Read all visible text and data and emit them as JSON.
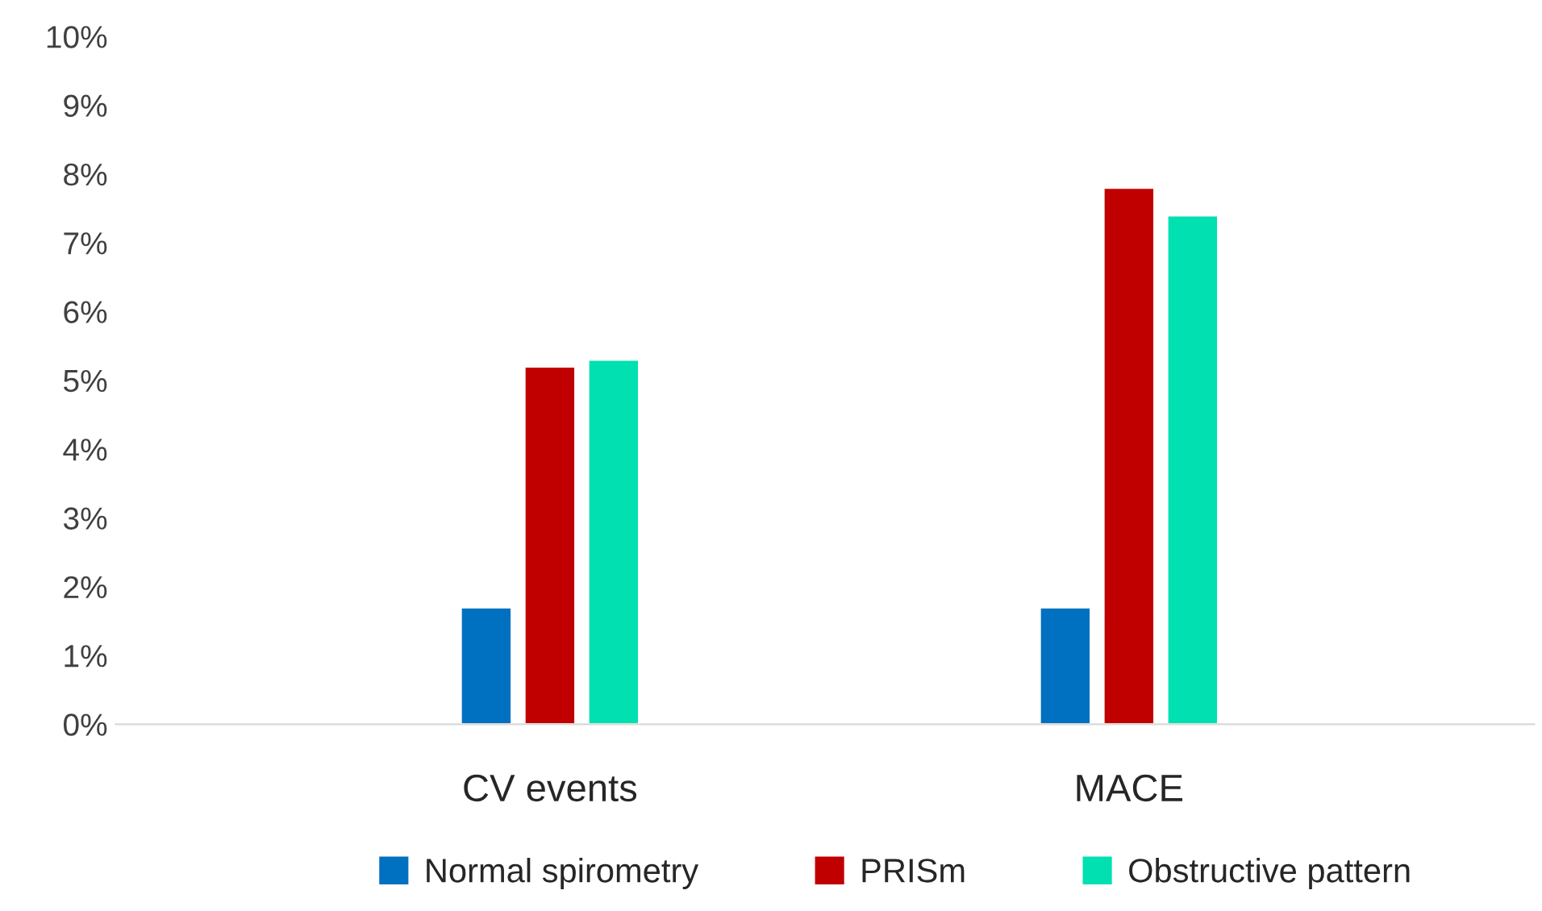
{
  "chart_data": {
    "type": "bar",
    "categories": [
      "CV events",
      "MACE"
    ],
    "series": [
      {
        "name": "Normal spirometry",
        "color": "#0070c0",
        "values": [
          1.7,
          1.7
        ]
      },
      {
        "name": "PRISm",
        "color": "#c00000",
        "values": [
          5.2,
          7.8
        ]
      },
      {
        "name": "Obstructive pattern",
        "color": "#00e0b0",
        "values": [
          5.3,
          7.4
        ]
      }
    ],
    "ylim": [
      0,
      10
    ],
    "yticks": [
      {
        "value": 0,
        "label": "0%"
      },
      {
        "value": 1,
        "label": "1%"
      },
      {
        "value": 2,
        "label": "2%"
      },
      {
        "value": 3,
        "label": "3%"
      },
      {
        "value": 4,
        "label": "4%"
      },
      {
        "value": 5,
        "label": "5%"
      },
      {
        "value": 6,
        "label": "6%"
      },
      {
        "value": 7,
        "label": "7%"
      },
      {
        "value": 8,
        "label": "8%"
      },
      {
        "value": 9,
        "label": "9%"
      },
      {
        "value": 10,
        "label": "10%"
      }
    ],
    "grid": false,
    "legend": "bottom"
  }
}
